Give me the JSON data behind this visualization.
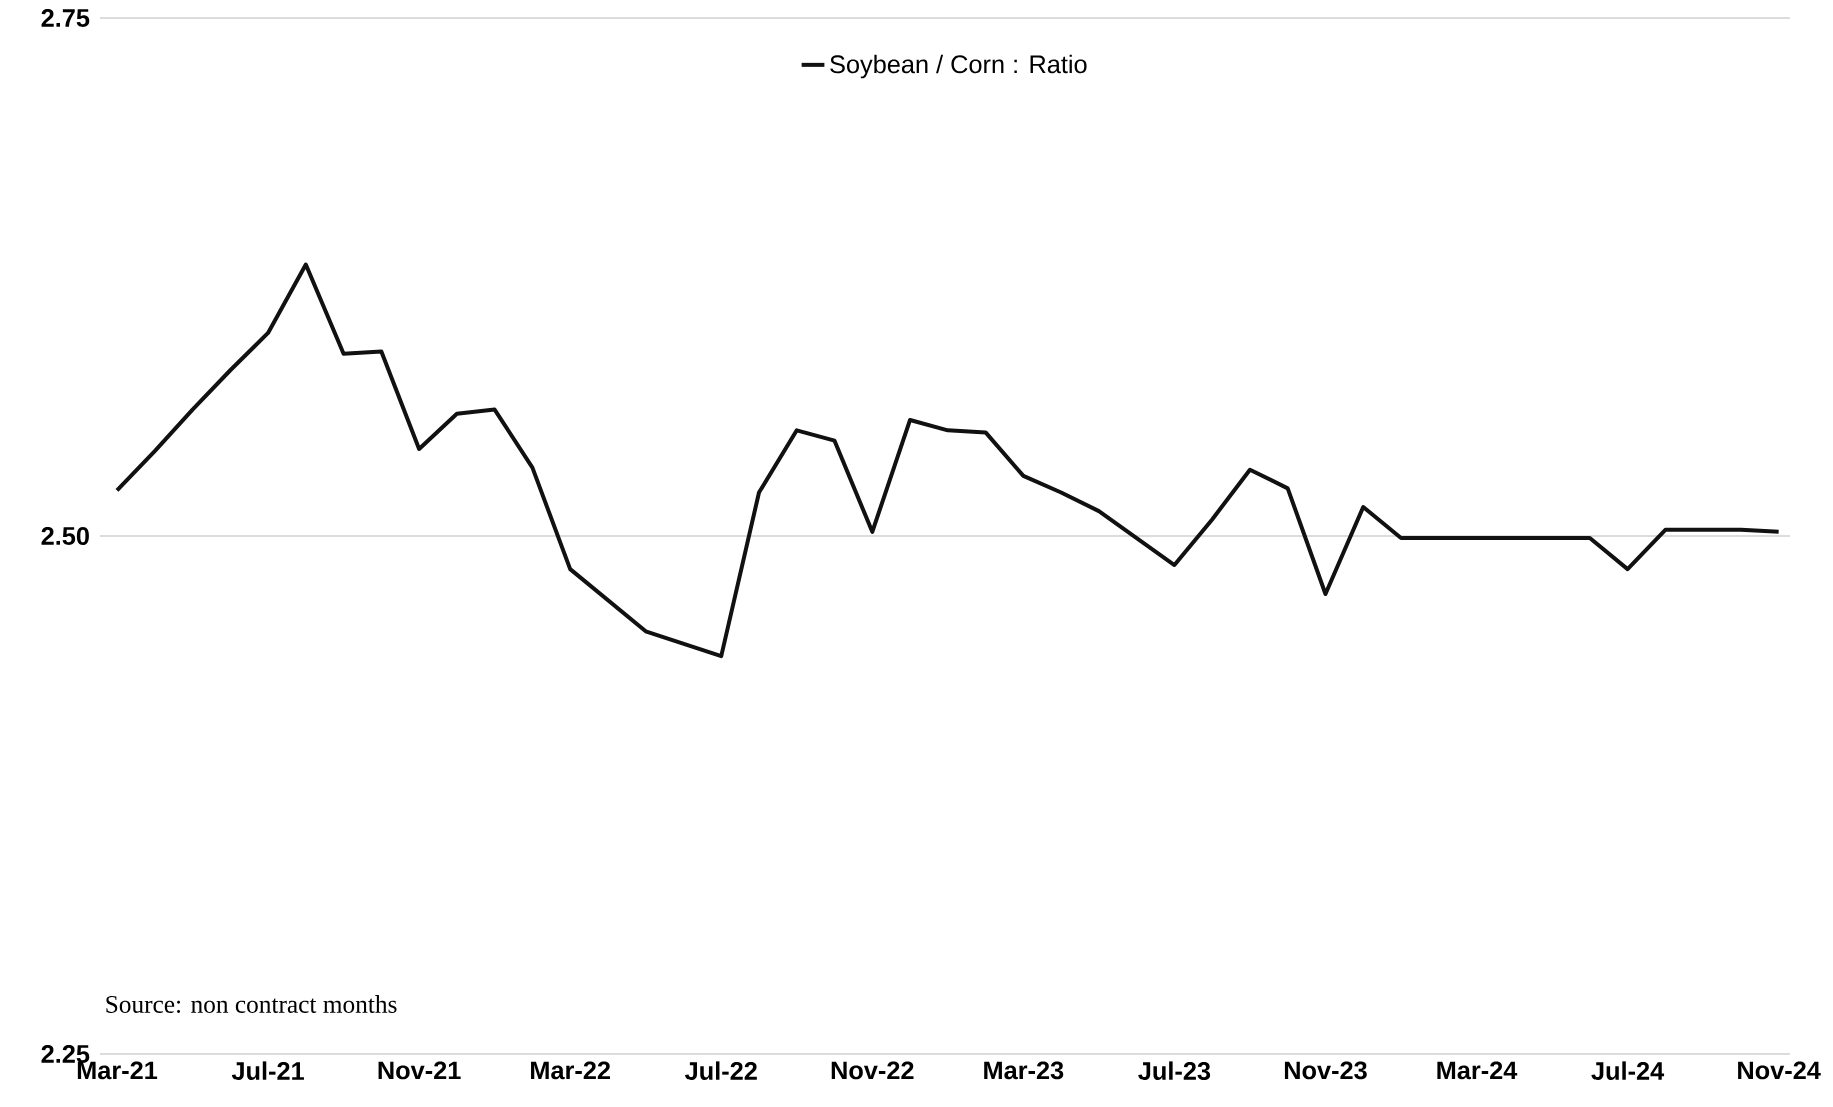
{
  "chart_data": {
    "type": "line",
    "categories": [
      "Mar-21",
      null,
      null,
      null,
      "Jul-21",
      null,
      null,
      null,
      "Nov-21",
      null,
      null,
      null,
      "Mar-22",
      null,
      null,
      null,
      "Jul-22",
      null,
      null,
      null,
      "Nov-22",
      null,
      null,
      null,
      "Mar-23",
      null,
      null,
      null,
      "Jul-23",
      null,
      null,
      null,
      "Nov-23",
      null,
      null,
      null,
      "Mar-24",
      null,
      null,
      null,
      "Jul-24",
      null,
      null,
      null,
      "Nov-24"
    ],
    "series": [
      {
        "name": "Soybean / Corn : Ratio",
        "color": "#111111",
        "values": [
          2.522,
          2.541,
          2.561,
          2.58,
          2.598,
          2.631,
          2.588,
          2.589,
          2.542,
          2.559,
          2.561,
          2.533,
          2.484,
          2.469,
          2.454,
          2.448,
          2.442,
          2.521,
          2.551,
          2.546,
          2.502,
          2.556,
          2.551,
          2.55,
          2.529,
          2.521,
          2.512,
          2.499,
          2.486,
          2.508,
          2.532,
          2.523,
          2.472,
          2.514,
          2.499,
          2.499,
          2.499,
          2.499,
          2.499,
          2.499,
          2.484,
          2.503,
          2.503,
          2.503,
          2.502
        ]
      }
    ],
    "ylim": [
      2.25,
      2.75
    ],
    "yticks": [
      2.25,
      {
        "value": 2.5,
        "label": "2.50"
      },
      2.75
    ],
    "grid": "y",
    "legend": "top",
    "marker": "none",
    "line_style": "solid",
    "annotations": [
      "Source: non contract months"
    ]
  }
}
